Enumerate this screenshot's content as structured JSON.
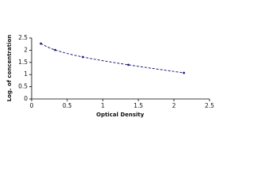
{
  "chart_data": {
    "type": "line",
    "x_label": "Optical Density",
    "y_label": "Log. of concentration",
    "x": [
      0.13,
      0.33,
      0.72,
      1.36,
      2.14
    ],
    "series": [
      {
        "color": "#1c1c78",
        "values": [
          2.27,
          2.01,
          1.72,
          1.4,
          1.07
        ]
      }
    ],
    "xlim": [
      0,
      2.5
    ],
    "xticks": [
      0,
      0.5,
      1,
      1.5,
      2,
      2.5
    ],
    "ylim": [
      0,
      2.5
    ],
    "yticks": [
      0,
      0.5,
      1,
      1.5,
      2,
      2.5
    ],
    "line_style": "dashed",
    "markers": true
  }
}
